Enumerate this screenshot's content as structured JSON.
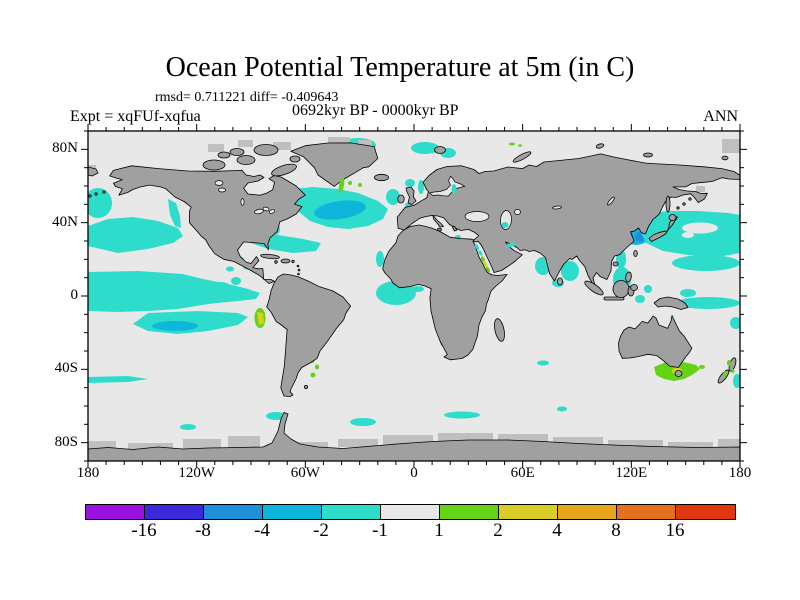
{
  "header": {
    "title": "Ocean Potential Temperature at 5m (in C)",
    "stats": "rmsd= 0.711221 diff= -0.409643",
    "period": "0692kyr BP - 0000kyr BP",
    "expt": "Expt = xqFUf-xqfua",
    "season": "ANN"
  },
  "axes": {
    "lat_labels": [
      "80N",
      "40N",
      "0",
      "40S",
      "80S"
    ],
    "lon_labels": [
      "180",
      "120W",
      "60W",
      "0",
      "60E",
      "120E",
      "180"
    ]
  },
  "colorbar": {
    "labels": [
      "-16",
      "-8",
      "-4",
      "-2",
      "-1",
      "1",
      "2",
      "4",
      "8",
      "16"
    ],
    "colors": [
      "#9912de",
      "#3a28d9",
      "#1f8fdc",
      "#0fb6dc",
      "#2edccc",
      "#e8e8e8",
      "#62d414",
      "#d9ce27",
      "#e8a51e",
      "#e3701c",
      "#e1380f"
    ]
  },
  "map": {
    "land_color": "#a0a0a0",
    "mask_color": "#bfbfbf",
    "coast_color": "#000000"
  },
  "chart_data": {
    "type": "heatmap",
    "title": "Ocean Potential Temperature at 5m (in C)",
    "stat_rmsd": 0.711221,
    "stat_diff": -0.409643,
    "field": "0692kyr BP - 0000kyr BP",
    "experiment": "xqFUf-xqfua",
    "season": "ANN",
    "units": "degC difference",
    "projection": "equirectangular world map; lon -180..180 ticks every 10 deg labels every 60; lat -90..90 ticks every 10 deg labels every 40",
    "contour_levels": [
      -16,
      -8,
      -4,
      -2,
      -1,
      1,
      2,
      4,
      8,
      16
    ],
    "palette": [
      "#9912de",
      "#3a28d9",
      "#1f8fdc",
      "#0fb6dc",
      "#2edccc",
      "#e8e8e8",
      "#62d414",
      "#d9ce27",
      "#e8a51e",
      "#e3701c",
      "#e1380f"
    ],
    "neutral_range": "values between -1 and 1 drawn light gray (most of the ocean)",
    "anomaly_regions": [
      {
        "region": "Bering Sea / NE Pacific and N American west coast",
        "lon": "170E-125W",
        "lat": "35N-60N",
        "value": "-2 to -1"
      },
      {
        "region": "Equatorial eastern Pacific cold tongue",
        "lon": "180-80W",
        "lat": "12N-15S",
        "value": "-2 to -1 with -4 to -2 streaks"
      },
      {
        "region": "NW Atlantic subpolar gyre / Gulf Stream",
        "lon": "60W-15W",
        "lat": "35N-62N",
        "value": "-2 to -1, core -4 to -2 SE of Newfoundland"
      },
      {
        "region": "Sea of Japan / Kuroshio extension to 180",
        "lon": "128E-180",
        "lat": "25N-48N",
        "value": "-2 to -1 band, -8 to -4 spots in Sea of Japan"
      },
      {
        "region": "SE Greenland coast",
        "lon": "42W",
        "lat": "60N-66N",
        "value": "+1 to +2"
      },
      {
        "region": "Peru coastal upwelling",
        "lon": "78W",
        "lat": "6S-14S",
        "value": "+2 to +4 spot rimmed by +1 to +2"
      },
      {
        "region": "South of Australia / Tasmania",
        "lon": "128E-150E",
        "lat": "38S-48S",
        "value": "+1 to +2 with +2 to +4 near Tasmania"
      },
      {
        "region": "Argentine shelf",
        "lon": "55W",
        "lat": "38S-46S",
        "value": "+1 to +2 dots"
      },
      {
        "region": "Red Sea and Persian Gulf",
        "lon": "35E-55E",
        "lat": "12N-30N",
        "value": "-2..-1 north, +1..+4 spots south"
      },
      {
        "region": "Barents / Kara seas around Svalbard",
        "lon": "10E-70E",
        "lat": "72N-80N",
        "value": "-2 to -1"
      },
      {
        "region": "Southern Ocean streaks",
        "lon": "various",
        "lat": "50S-65S",
        "value": "-2 to -1"
      },
      {
        "region": "Indian Ocean coasts, Bay of Bengal, SE Asian seas",
        "lon": "60E-150E",
        "lat": "20S-25N",
        "value": "-2 to -1 patches"
      },
      {
        "region": "Arctic Siberian coast dots / New Zealand dots",
        "lon": "100E / 170E",
        "lat": "75N / 40S",
        "value": "+1 to +2"
      }
    ]
  }
}
